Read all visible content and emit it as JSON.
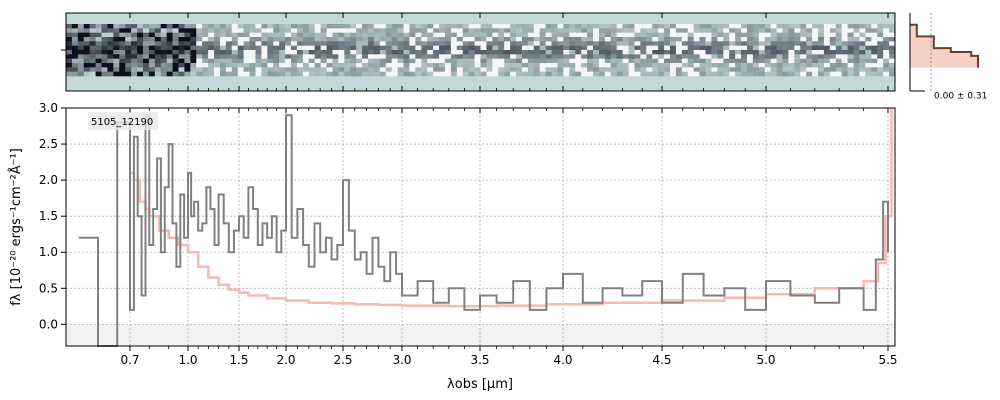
{
  "figure": {
    "object_label": "5105_12190",
    "profile_label": "0.00 ± 0.31"
  },
  "chart_data": [
    {
      "type": "heatmap",
      "panel": "2D spectrum",
      "colormap": [
        "#c3d9d8",
        "#0b1020"
      ],
      "background": "#c3d9d8",
      "description_of_values": "spectral trace brightest near the middle rows, noisy blue end"
    },
    {
      "type": "line",
      "panel": "spatial profile",
      "color": "#6b3d2e",
      "fill": "#f6cfc6",
      "x": [
        0.0,
        0.1,
        0.35,
        0.6,
        0.9,
        1.0
      ],
      "y_rows": [
        0.15,
        0.3,
        0.45,
        0.5,
        0.55,
        0.7
      ]
    },
    {
      "type": "line",
      "panel": "1D spectrum",
      "xlabel": "λobs [μm]",
      "ylabel": "fλ [10⁻²⁰ ergs⁻¹cm⁻²Å⁻¹]",
      "x_scale": "reciprocal-like",
      "xlim": [
        0.6,
        5.52
      ],
      "ylim": [
        -0.3,
        3.0
      ],
      "grid": true,
      "x_ticks": [
        0.7,
        1.0,
        1.5,
        2.0,
        2.5,
        3.0,
        3.5,
        4.0,
        4.5,
        5.0,
        5.5
      ],
      "x_tick_labels": [
        "0.7",
        "1.0",
        "1.5",
        "2.0",
        "2.5",
        "3.0",
        "3.5",
        "4.0",
        "4.5",
        "5.0",
        "5.5"
      ],
      "y_ticks": [
        0.0,
        0.5,
        1.0,
        1.5,
        2.0,
        2.5,
        3.0
      ],
      "y_tick_labels": [
        "0.0",
        "0.5",
        "1.0",
        "1.5",
        "2.0",
        "2.5",
        "3.0"
      ],
      "series": [
        {
          "role": "flux",
          "color": "#808080",
          "x": [
            0.62,
            0.65,
            0.68,
            0.7,
            0.72,
            0.74,
            0.76,
            0.78,
            0.8,
            0.82,
            0.84,
            0.86,
            0.88,
            0.9,
            0.92,
            0.94,
            0.96,
            0.98,
            1.0,
            1.03,
            1.06,
            1.1,
            1.14,
            1.18,
            1.22,
            1.26,
            1.3,
            1.35,
            1.4,
            1.45,
            1.5,
            1.55,
            1.6,
            1.65,
            1.7,
            1.75,
            1.8,
            1.85,
            1.9,
            1.95,
            2.0,
            2.05,
            2.1,
            2.15,
            2.2,
            2.25,
            2.3,
            2.35,
            2.4,
            2.45,
            2.5,
            2.55,
            2.6,
            2.65,
            2.7,
            2.75,
            2.8,
            2.85,
            2.9,
            2.95,
            3.0,
            3.1,
            3.2,
            3.3,
            3.4,
            3.5,
            3.6,
            3.7,
            3.8,
            3.9,
            4.0,
            4.1,
            4.2,
            4.3,
            4.4,
            4.5,
            4.6,
            4.7,
            4.8,
            4.9,
            5.0,
            5.1,
            5.2,
            5.3,
            5.4,
            5.45,
            5.48,
            5.5
          ],
          "y": [
            1.2,
            -0.3,
            2.8,
            0.2,
            2.6,
            1.5,
            0.4,
            2.9,
            1.1,
            1.6,
            2.3,
            1.0,
            1.9,
            2.5,
            1.4,
            0.8,
            1.8,
            1.2,
            2.1,
            1.5,
            1.7,
            1.3,
            1.4,
            1.9,
            1.6,
            1.1,
            1.8,
            1.4,
            1.0,
            1.3,
            1.5,
            1.2,
            1.9,
            1.6,
            1.1,
            1.4,
            1.2,
            1.5,
            1.0,
            1.3,
            2.9,
            1.2,
            1.6,
            1.1,
            0.8,
            1.4,
            1.0,
            1.2,
            0.9,
            1.1,
            2.0,
            1.3,
            0.9,
            1.0,
            0.7,
            1.2,
            0.8,
            0.6,
            1.0,
            0.7,
            0.4,
            0.6,
            0.3,
            0.5,
            0.2,
            0.4,
            0.3,
            0.6,
            0.2,
            0.5,
            0.7,
            0.3,
            0.5,
            0.4,
            0.6,
            0.3,
            0.7,
            0.4,
            0.5,
            0.2,
            0.6,
            0.4,
            0.3,
            0.5,
            0.2,
            0.9,
            1.7,
            1.0
          ]
        },
        {
          "role": "error",
          "color": "#f7b9b4",
          "x": [
            0.7,
            0.72,
            0.75,
            0.78,
            0.8,
            0.85,
            0.9,
            0.95,
            1.0,
            1.1,
            1.2,
            1.3,
            1.4,
            1.5,
            1.6,
            1.8,
            2.0,
            2.2,
            2.4,
            2.6,
            2.8,
            3.0,
            3.3,
            3.6,
            3.9,
            4.2,
            4.5,
            4.8,
            5.0,
            5.2,
            5.4,
            5.46,
            5.49,
            5.51
          ],
          "y": [
            2.1,
            2.0,
            1.7,
            1.6,
            1.5,
            1.3,
            1.2,
            1.1,
            1.0,
            0.8,
            0.65,
            0.55,
            0.48,
            0.44,
            0.4,
            0.36,
            0.33,
            0.3,
            0.29,
            0.28,
            0.27,
            0.26,
            0.25,
            0.26,
            0.28,
            0.3,
            0.33,
            0.37,
            0.42,
            0.5,
            0.6,
            0.85,
            1.5,
            3.0
          ]
        }
      ]
    }
  ]
}
